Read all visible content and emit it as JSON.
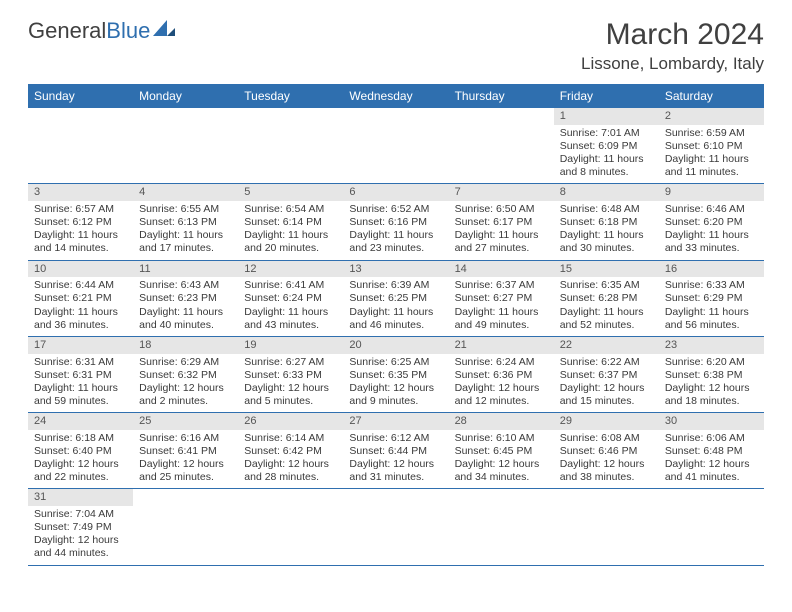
{
  "brand": {
    "part1": "General",
    "part2": "Blue"
  },
  "title": {
    "month": "March 2024",
    "location": "Lissone, Lombardy, Italy"
  },
  "colors": {
    "header_bg": "#2f6faf",
    "header_fg": "#ffffff",
    "daynum_bg": "#e6e6e6",
    "rule": "#2f6faf"
  },
  "weekdays": [
    "Sunday",
    "Monday",
    "Tuesday",
    "Wednesday",
    "Thursday",
    "Friday",
    "Saturday"
  ],
  "weeks": [
    [
      null,
      null,
      null,
      null,
      null,
      {
        "n": "1",
        "sr": "Sunrise: 7:01 AM",
        "ss": "Sunset: 6:09 PM",
        "dl": "Daylight: 11 hours and 8 minutes."
      },
      {
        "n": "2",
        "sr": "Sunrise: 6:59 AM",
        "ss": "Sunset: 6:10 PM",
        "dl": "Daylight: 11 hours and 11 minutes."
      }
    ],
    [
      {
        "n": "3",
        "sr": "Sunrise: 6:57 AM",
        "ss": "Sunset: 6:12 PM",
        "dl": "Daylight: 11 hours and 14 minutes."
      },
      {
        "n": "4",
        "sr": "Sunrise: 6:55 AM",
        "ss": "Sunset: 6:13 PM",
        "dl": "Daylight: 11 hours and 17 minutes."
      },
      {
        "n": "5",
        "sr": "Sunrise: 6:54 AM",
        "ss": "Sunset: 6:14 PM",
        "dl": "Daylight: 11 hours and 20 minutes."
      },
      {
        "n": "6",
        "sr": "Sunrise: 6:52 AM",
        "ss": "Sunset: 6:16 PM",
        "dl": "Daylight: 11 hours and 23 minutes."
      },
      {
        "n": "7",
        "sr": "Sunrise: 6:50 AM",
        "ss": "Sunset: 6:17 PM",
        "dl": "Daylight: 11 hours and 27 minutes."
      },
      {
        "n": "8",
        "sr": "Sunrise: 6:48 AM",
        "ss": "Sunset: 6:18 PM",
        "dl": "Daylight: 11 hours and 30 minutes."
      },
      {
        "n": "9",
        "sr": "Sunrise: 6:46 AM",
        "ss": "Sunset: 6:20 PM",
        "dl": "Daylight: 11 hours and 33 minutes."
      }
    ],
    [
      {
        "n": "10",
        "sr": "Sunrise: 6:44 AM",
        "ss": "Sunset: 6:21 PM",
        "dl": "Daylight: 11 hours and 36 minutes."
      },
      {
        "n": "11",
        "sr": "Sunrise: 6:43 AM",
        "ss": "Sunset: 6:23 PM",
        "dl": "Daylight: 11 hours and 40 minutes."
      },
      {
        "n": "12",
        "sr": "Sunrise: 6:41 AM",
        "ss": "Sunset: 6:24 PM",
        "dl": "Daylight: 11 hours and 43 minutes."
      },
      {
        "n": "13",
        "sr": "Sunrise: 6:39 AM",
        "ss": "Sunset: 6:25 PM",
        "dl": "Daylight: 11 hours and 46 minutes."
      },
      {
        "n": "14",
        "sr": "Sunrise: 6:37 AM",
        "ss": "Sunset: 6:27 PM",
        "dl": "Daylight: 11 hours and 49 minutes."
      },
      {
        "n": "15",
        "sr": "Sunrise: 6:35 AM",
        "ss": "Sunset: 6:28 PM",
        "dl": "Daylight: 11 hours and 52 minutes."
      },
      {
        "n": "16",
        "sr": "Sunrise: 6:33 AM",
        "ss": "Sunset: 6:29 PM",
        "dl": "Daylight: 11 hours and 56 minutes."
      }
    ],
    [
      {
        "n": "17",
        "sr": "Sunrise: 6:31 AM",
        "ss": "Sunset: 6:31 PM",
        "dl": "Daylight: 11 hours and 59 minutes."
      },
      {
        "n": "18",
        "sr": "Sunrise: 6:29 AM",
        "ss": "Sunset: 6:32 PM",
        "dl": "Daylight: 12 hours and 2 minutes."
      },
      {
        "n": "19",
        "sr": "Sunrise: 6:27 AM",
        "ss": "Sunset: 6:33 PM",
        "dl": "Daylight: 12 hours and 5 minutes."
      },
      {
        "n": "20",
        "sr": "Sunrise: 6:25 AM",
        "ss": "Sunset: 6:35 PM",
        "dl": "Daylight: 12 hours and 9 minutes."
      },
      {
        "n": "21",
        "sr": "Sunrise: 6:24 AM",
        "ss": "Sunset: 6:36 PM",
        "dl": "Daylight: 12 hours and 12 minutes."
      },
      {
        "n": "22",
        "sr": "Sunrise: 6:22 AM",
        "ss": "Sunset: 6:37 PM",
        "dl": "Daylight: 12 hours and 15 minutes."
      },
      {
        "n": "23",
        "sr": "Sunrise: 6:20 AM",
        "ss": "Sunset: 6:38 PM",
        "dl": "Daylight: 12 hours and 18 minutes."
      }
    ],
    [
      {
        "n": "24",
        "sr": "Sunrise: 6:18 AM",
        "ss": "Sunset: 6:40 PM",
        "dl": "Daylight: 12 hours and 22 minutes."
      },
      {
        "n": "25",
        "sr": "Sunrise: 6:16 AM",
        "ss": "Sunset: 6:41 PM",
        "dl": "Daylight: 12 hours and 25 minutes."
      },
      {
        "n": "26",
        "sr": "Sunrise: 6:14 AM",
        "ss": "Sunset: 6:42 PM",
        "dl": "Daylight: 12 hours and 28 minutes."
      },
      {
        "n": "27",
        "sr": "Sunrise: 6:12 AM",
        "ss": "Sunset: 6:44 PM",
        "dl": "Daylight: 12 hours and 31 minutes."
      },
      {
        "n": "28",
        "sr": "Sunrise: 6:10 AM",
        "ss": "Sunset: 6:45 PM",
        "dl": "Daylight: 12 hours and 34 minutes."
      },
      {
        "n": "29",
        "sr": "Sunrise: 6:08 AM",
        "ss": "Sunset: 6:46 PM",
        "dl": "Daylight: 12 hours and 38 minutes."
      },
      {
        "n": "30",
        "sr": "Sunrise: 6:06 AM",
        "ss": "Sunset: 6:48 PM",
        "dl": "Daylight: 12 hours and 41 minutes."
      }
    ],
    [
      {
        "n": "31",
        "sr": "Sunrise: 7:04 AM",
        "ss": "Sunset: 7:49 PM",
        "dl": "Daylight: 12 hours and 44 minutes."
      },
      null,
      null,
      null,
      null,
      null,
      null
    ]
  ]
}
